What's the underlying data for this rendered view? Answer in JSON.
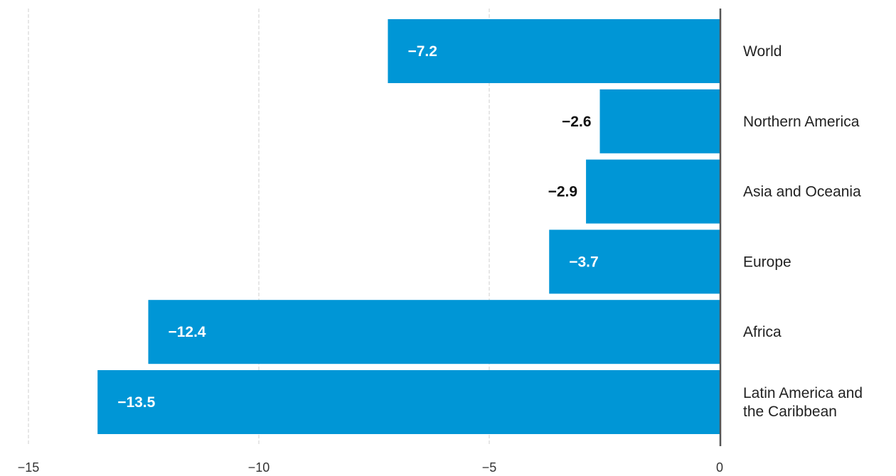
{
  "chart_data": {
    "type": "bar",
    "orientation": "horizontal",
    "categories": [
      "World",
      "Northern America",
      "Asia and Oceania",
      "Europe",
      "Africa",
      "Latin America and the Caribbean"
    ],
    "category_label_lines": [
      [
        "World"
      ],
      [
        "Northern America"
      ],
      [
        "Asia and Oceania"
      ],
      [
        "Europe"
      ],
      [
        "Africa"
      ],
      [
        "Latin America and",
        "the Caribbean"
      ]
    ],
    "values": [
      -7.2,
      -2.6,
      -2.9,
      -3.7,
      -12.4,
      -13.5
    ],
    "value_labels": [
      "−7.2",
      "−2.6",
      "−2.9",
      "−3.7",
      "−12.4",
      "−13.5"
    ],
    "xticks": [
      -15,
      -10,
      -5,
      0
    ],
    "xtick_labels": [
      "−15",
      "−10",
      "−5",
      "0"
    ],
    "xlim": [
      -15,
      0
    ],
    "grid": true,
    "category_labels_side": "right",
    "title": "",
    "xlabel": "",
    "ylabel": "",
    "colors": {
      "bar": "#0096d6",
      "label_inside": "#ffffff",
      "label_outside": "#111111"
    }
  }
}
